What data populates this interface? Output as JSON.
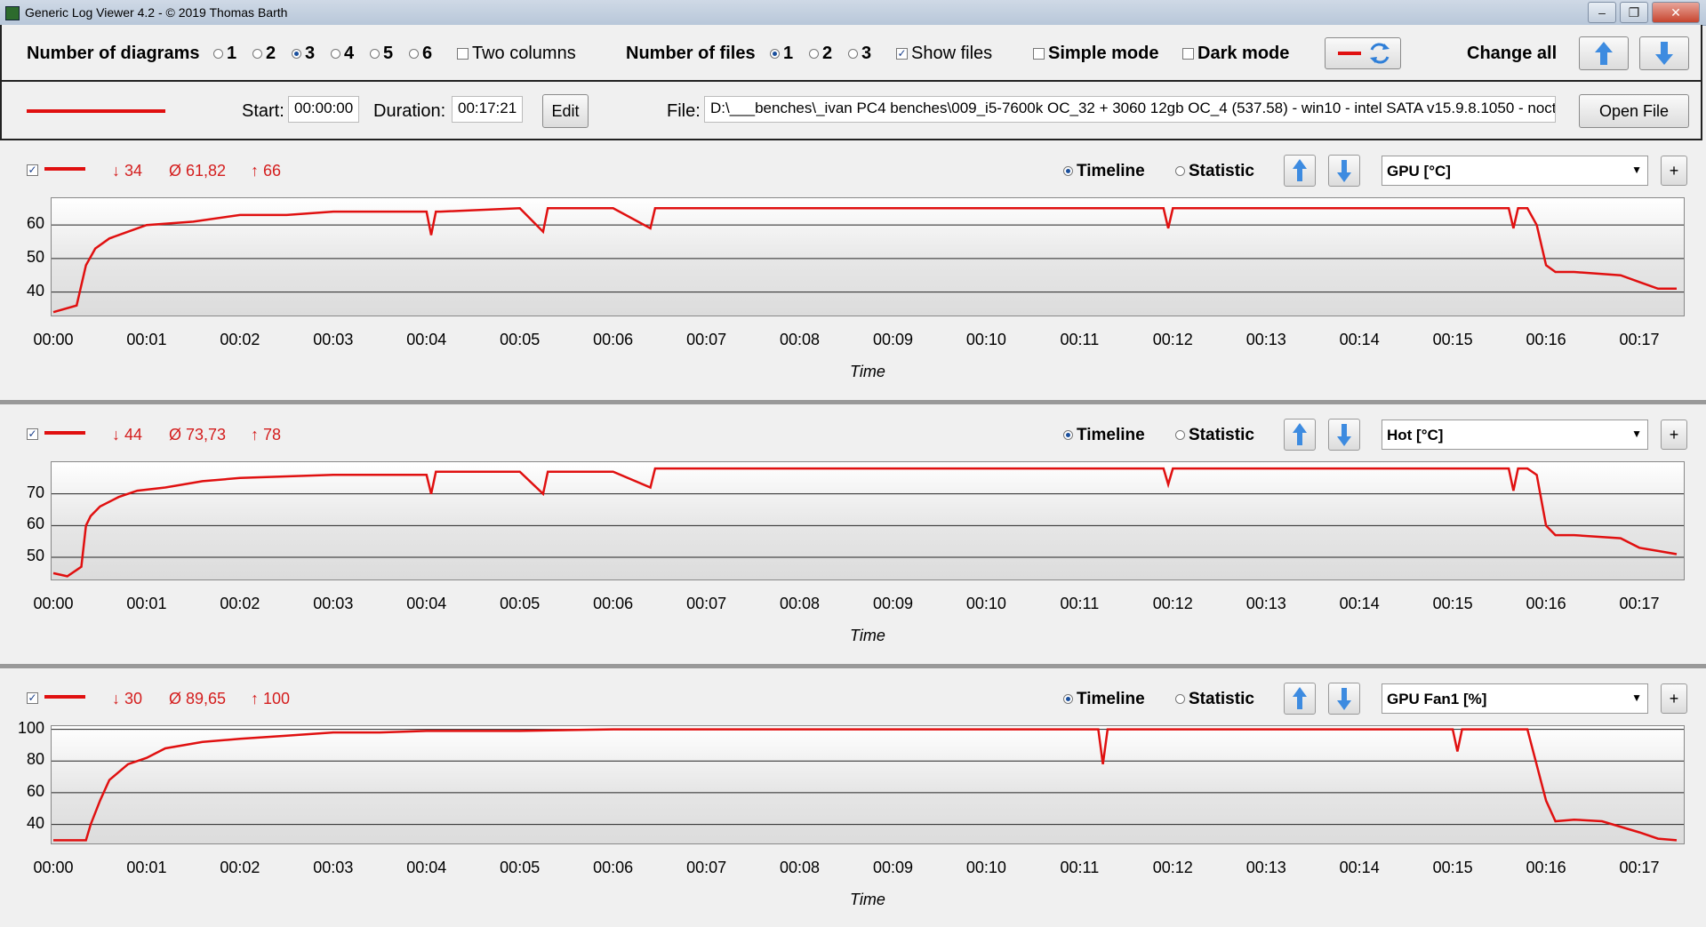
{
  "window": {
    "title": "Generic Log Viewer 4.2 - © 2019 Thomas Barth",
    "minimize_glyph": "–",
    "maximize_glyph": "❐",
    "close_glyph": "✕"
  },
  "toolbar": {
    "diagrams_label": "Number of diagrams",
    "diagram_options": [
      "1",
      "2",
      "3",
      "4",
      "5",
      "6"
    ],
    "diagrams_selected": "3",
    "two_columns_label": "Two columns",
    "files_label": "Number of files",
    "file_options": [
      "1",
      "2",
      "3"
    ],
    "files_selected": "1",
    "show_files_label": "Show files",
    "simple_mode_label": "Simple mode",
    "dark_mode_label": "Dark mode",
    "change_all_label": "Change all"
  },
  "file": {
    "start_label": "Start:",
    "start_value": "00:00:00",
    "duration_label": "Duration:",
    "duration_value": "00:17:21",
    "edit_label": "Edit",
    "file_label": "File:",
    "file_path": "D:\\___benches\\_ivan PC4 benches\\009_i5-7600k OC_32 + 3060 12gb OC_4 (537.58) - win10 - intel SATA v15.9.8.1050 - noct",
    "open_file_label": "Open File",
    "line_color": "#e01010"
  },
  "panels": [
    {
      "min": "↓ 34",
      "avg": "Ø 61,82",
      "max": "↑ 66",
      "timeline_label": "Timeline",
      "statistic_label": "Statistic",
      "sensor": "GPU [°C]",
      "plus": "+",
      "xlabel": "Time"
    },
    {
      "min": "↓ 44",
      "avg": "Ø 73,73",
      "max": "↑ 78",
      "timeline_label": "Timeline",
      "statistic_label": "Statistic",
      "sensor": "Hot [°C]",
      "plus": "+",
      "xlabel": "Time"
    },
    {
      "min": "↓ 30",
      "avg": "Ø 89,65",
      "max": "↑ 100",
      "timeline_label": "Timeline",
      "statistic_label": "Statistic",
      "sensor": "GPU Fan1 [%]",
      "plus": "+",
      "xlabel": "Time"
    }
  ],
  "chart_data": [
    {
      "type": "line",
      "series": [
        {
          "name": "GPU [°C]",
          "color": "#e01010",
          "x": [
            0,
            0.25,
            0.35,
            0.45,
            0.6,
            0.8,
            1.0,
            1.5,
            2.0,
            2.5,
            3.0,
            4.0,
            4.05,
            4.1,
            4.15,
            5.0,
            5.25,
            5.3,
            6.0,
            6.4,
            6.45,
            6.5,
            8.0,
            10.0,
            11.9,
            11.95,
            12.0,
            14.0,
            15.6,
            15.65,
            15.7,
            15.8,
            15.9,
            16.0,
            16.1,
            16.3,
            16.8,
            17.0,
            17.2,
            17.4
          ],
          "y": [
            34,
            36,
            48,
            53,
            56,
            58,
            60,
            61,
            63,
            63,
            64,
            64,
            57,
            64,
            64,
            65,
            58,
            65,
            65,
            59,
            65,
            65,
            65,
            65,
            65,
            59,
            65,
            65,
            65,
            59,
            65,
            65,
            60,
            48,
            46,
            46,
            45,
            43,
            41,
            41
          ]
        }
      ],
      "xticks": [
        "00:00",
        "00:01",
        "00:02",
        "00:03",
        "00:04",
        "00:05",
        "00:06",
        "00:07",
        "00:08",
        "00:09",
        "00:10",
        "00:11",
        "00:12",
        "00:13",
        "00:14",
        "00:15",
        "00:16",
        "00:17"
      ],
      "yticks": [
        40,
        50,
        60
      ],
      "ylim": [
        33,
        68
      ],
      "xlim": [
        0,
        17.4
      ],
      "xlabel": "Time"
    },
    {
      "type": "line",
      "series": [
        {
          "name": "Hot [°C]",
          "color": "#e01010",
          "x": [
            0,
            0.15,
            0.25,
            0.3,
            0.35,
            0.4,
            0.5,
            0.7,
            0.9,
            1.2,
            1.6,
            2.0,
            3.0,
            4.0,
            4.05,
            4.1,
            4.15,
            5.0,
            5.25,
            5.3,
            6.0,
            6.4,
            6.45,
            6.5,
            8.0,
            10.0,
            11.9,
            11.95,
            12.0,
            14.0,
            15.6,
            15.65,
            15.7,
            15.8,
            15.9,
            16.0,
            16.1,
            16.3,
            16.8,
            17.0,
            17.2,
            17.4
          ],
          "y": [
            45,
            44,
            46,
            47,
            60,
            63,
            66,
            69,
            71,
            72,
            74,
            75,
            76,
            76,
            70,
            77,
            77,
            77,
            70,
            77,
            77,
            72,
            78,
            78,
            78,
            78,
            78,
            73,
            78,
            78,
            78,
            71,
            78,
            78,
            76,
            60,
            57,
            57,
            56,
            53,
            52,
            51
          ]
        }
      ],
      "xticks": [
        "00:00",
        "00:01",
        "00:02",
        "00:03",
        "00:04",
        "00:05",
        "00:06",
        "00:07",
        "00:08",
        "00:09",
        "00:10",
        "00:11",
        "00:12",
        "00:13",
        "00:14",
        "00:15",
        "00:16",
        "00:17"
      ],
      "yticks": [
        50,
        60,
        70
      ],
      "ylim": [
        43,
        80
      ],
      "xlim": [
        0,
        17.4
      ],
      "xlabel": "Time"
    },
    {
      "type": "line",
      "series": [
        {
          "name": "GPU Fan1 [%]",
          "color": "#e01010",
          "x": [
            0,
            0.35,
            0.4,
            0.5,
            0.6,
            0.8,
            1.0,
            1.2,
            1.6,
            2.0,
            2.5,
            3.0,
            3.5,
            4.0,
            5.0,
            6.0,
            7.0,
            8.0,
            10.0,
            11.2,
            11.25,
            11.3,
            12.0,
            14.0,
            15.0,
            15.05,
            15.1,
            15.8,
            16.0,
            16.1,
            16.3,
            16.6,
            17.0,
            17.2,
            17.4
          ],
          "y": [
            30,
            30,
            40,
            55,
            68,
            78,
            82,
            88,
            92,
            94,
            96,
            98,
            98,
            99,
            99,
            100,
            100,
            100,
            100,
            100,
            78,
            100,
            100,
            100,
            100,
            86,
            100,
            100,
            55,
            42,
            43,
            42,
            35,
            31,
            30
          ]
        }
      ],
      "xticks": [
        "00:00",
        "00:01",
        "00:02",
        "00:03",
        "00:04",
        "00:05",
        "00:06",
        "00:07",
        "00:08",
        "00:09",
        "00:10",
        "00:11",
        "00:12",
        "00:13",
        "00:14",
        "00:15",
        "00:16",
        "00:17"
      ],
      "yticks": [
        40,
        60,
        80,
        100
      ],
      "ylim": [
        28,
        102
      ],
      "xlim": [
        0,
        17.4
      ],
      "xlabel": "Time"
    }
  ]
}
